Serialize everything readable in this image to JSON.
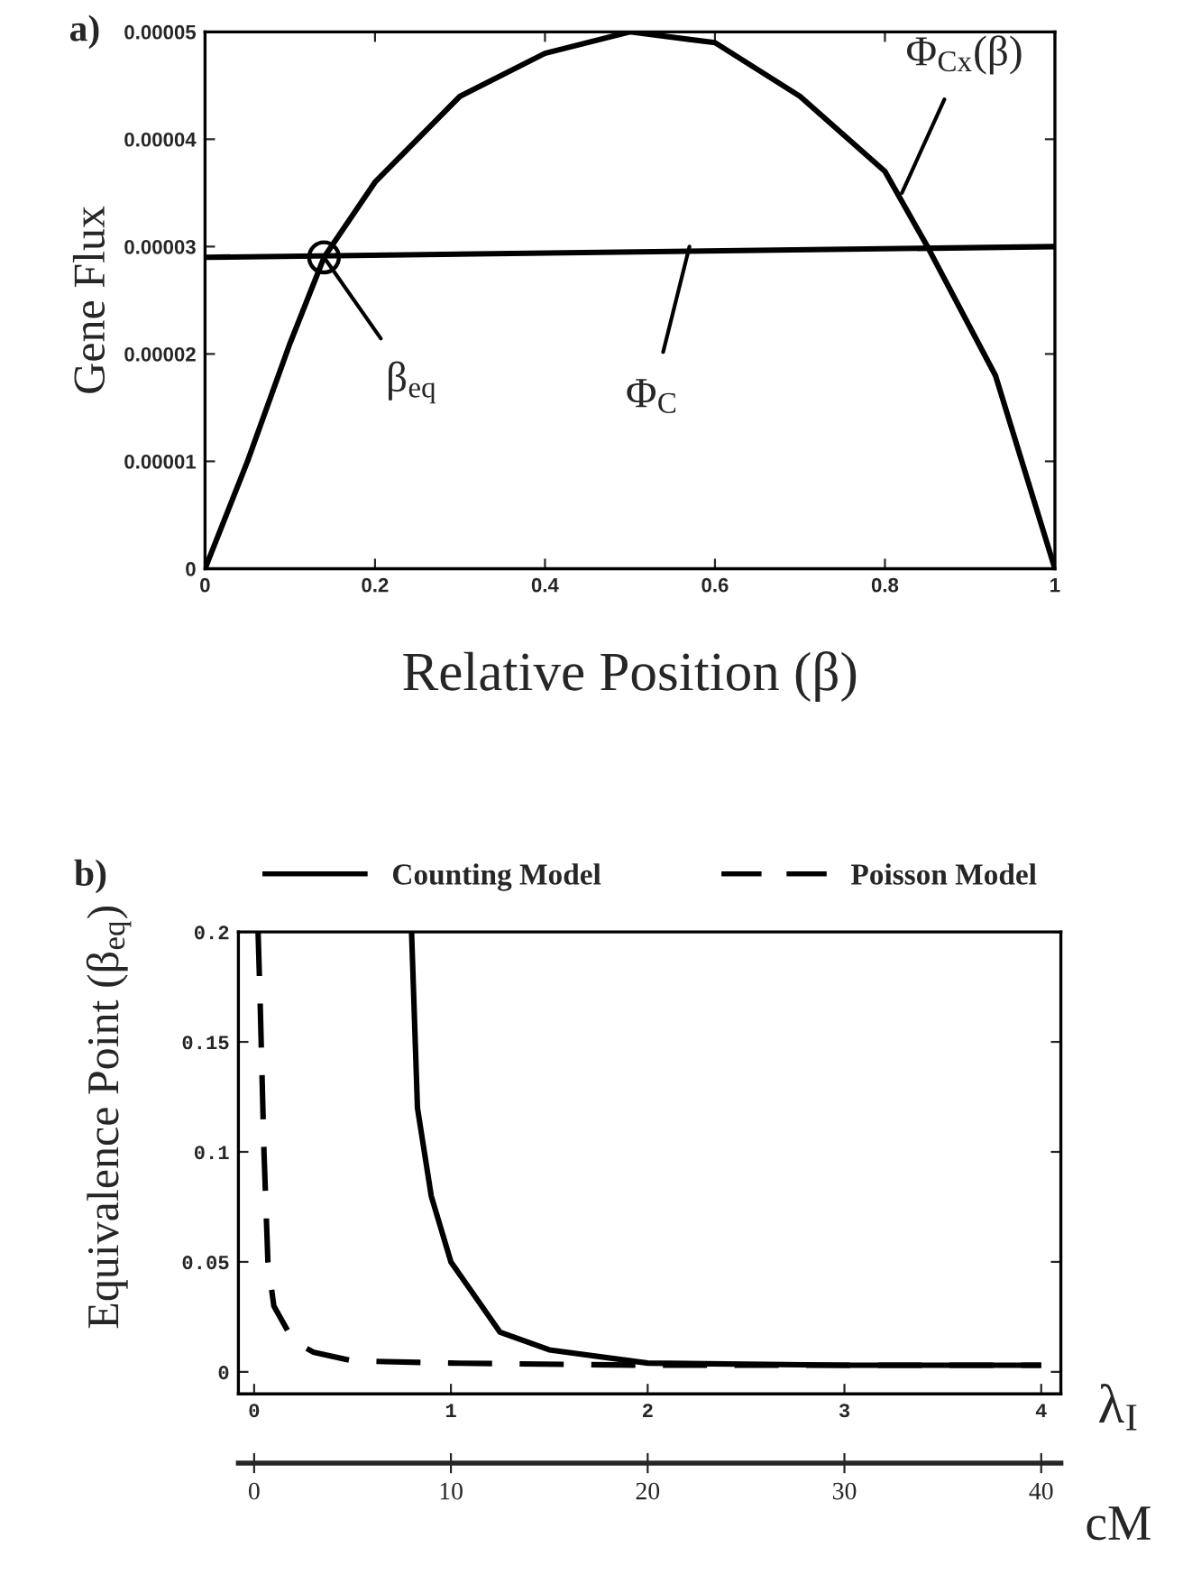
{
  "chart_data": [
    {
      "type": "line",
      "title": "a)",
      "xlabel": "Relative Position (β)",
      "ylabel": "Gene Flux",
      "xlim": [
        0,
        1
      ],
      "ylim": [
        0,
        5e-05
      ],
      "xticks": [
        0,
        0.2,
        0.4,
        0.6,
        0.8,
        1
      ],
      "yticks": [
        0,
        {
          "value": 1e-05,
          "label": "0.00001"
        },
        {
          "value": 2e-05,
          "label": "0.00002"
        },
        {
          "value": 3e-05,
          "label": "0.00003"
        },
        {
          "value": 4e-05,
          "label": "0.00004"
        },
        {
          "value": 5e-05,
          "label": "0.00005"
        }
      ],
      "grid": false,
      "legend": false,
      "series": [
        {
          "color": "#000000",
          "line_style": "solid",
          "x": [
            0,
            0.05,
            0.1,
            0.14,
            0.2,
            0.3,
            0.4,
            0.5,
            0.6,
            0.7,
            0.8,
            0.85,
            0.93,
            1.0
          ],
          "values": [
            0,
            1e-05,
            2.1e-05,
            2.9e-05,
            3.6e-05,
            4.4e-05,
            4.8e-05,
            5e-05,
            4.9e-05,
            4.4e-05,
            3.7e-05,
            3e-05,
            1.8e-05,
            0
          ]
        },
        {
          "color": "#000000",
          "line_style": "solid",
          "x": [
            0,
            1
          ],
          "values": [
            2.9e-05,
            3e-05
          ]
        }
      ],
      "annotations": [
        {
          "text": "β$_{eq}$",
          "x": 0.14,
          "y": 2.9e-05
        },
        {
          "text": "Φ$_{C}$",
          "x": 0.57,
          "y": 3e-05
        },
        {
          "text": "Φ$_{Cx}$(β)",
          "x": 0.82,
          "y": 3.5e-05
        }
      ]
    },
    {
      "type": "line",
      "title": "b)",
      "xlabel": "λ$_{I}$",
      "ylabel": "Equivalence Point (β$_{eq}$)",
      "x2label": "cM",
      "xlim": [
        -0.08,
        4.1
      ],
      "ylim": [
        -0.01,
        0.2
      ],
      "x2lim": [
        -0.8,
        41
      ],
      "xticks": [
        0,
        1,
        2,
        3,
        4
      ],
      "yticks": [
        0,
        0.05,
        0.1,
        0.15,
        0.2
      ],
      "x2ticks": [
        0,
        10,
        20,
        30,
        40
      ],
      "grid": false,
      "legend": "top",
      "series": [
        {
          "name": "Counting Model",
          "color": "#000000",
          "line_style": "solid",
          "x": [
            0.8,
            0.83,
            0.9,
            1.0,
            1.25,
            1.5,
            2.0,
            3.0,
            4.0
          ],
          "values": [
            0.2,
            0.12,
            0.08,
            0.05,
            0.018,
            0.01,
            0.004,
            0.003,
            0.003
          ]
        },
        {
          "name": "Poisson Model",
          "color": "#000000",
          "line_style": "dashed",
          "x": [
            0.02,
            0.03,
            0.05,
            0.07,
            0.1,
            0.2,
            0.3,
            0.5,
            1.0,
            2.0,
            4.0
          ],
          "values": [
            0.2,
            0.17,
            0.1,
            0.05,
            0.03,
            0.014,
            0.009,
            0.005,
            0.004,
            0.003,
            0.003
          ]
        }
      ]
    }
  ]
}
